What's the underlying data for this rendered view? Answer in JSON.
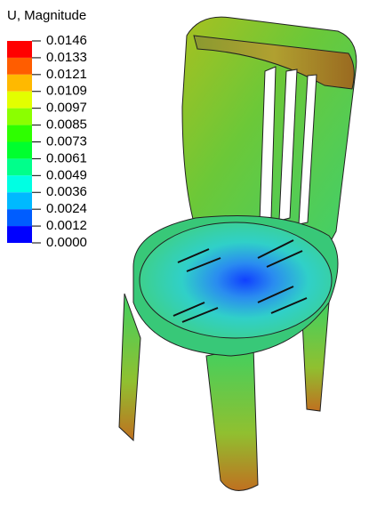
{
  "legend": {
    "title": "U, Magnitude",
    "labels": [
      "0.0146",
      "0.0133",
      "0.0121",
      "0.0109",
      "0.0097",
      "0.0085",
      "0.0073",
      "0.0061",
      "0.0049",
      "0.0036",
      "0.0024",
      "0.0012",
      "0.0000"
    ],
    "colors": [
      "#ff0000",
      "#ff5d00",
      "#ffb900",
      "#e3ff00",
      "#8bff00",
      "#2eff00",
      "#00ff2e",
      "#00ff8b",
      "#00ffe3",
      "#00b9ff",
      "#005dff",
      "#0000ff"
    ]
  }
}
